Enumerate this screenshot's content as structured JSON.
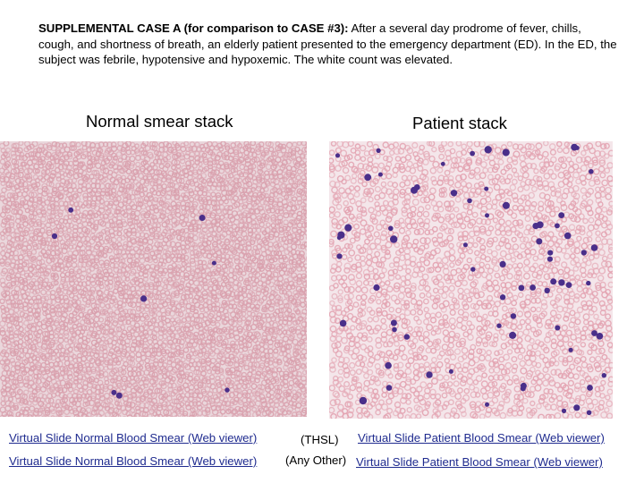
{
  "intro": {
    "bold_lead": "SUPPLEMENTAL CASE A (for comparison to CASE #3):",
    "body": " After a several day prodrome of fever, chills, cough, and shortness of breath, an elderly patient presented to the emergency department (ED). In the ED, the subject was febrile, hypotensive and hypoxemic. The white count was elevated."
  },
  "panels": {
    "normal_title": "Normal smear stack",
    "patient_title": "Patient stack"
  },
  "links": {
    "row1": {
      "left": "Virtual Slide Normal Blood Smear (Web viewer)",
      "middle": "(THSL)",
      "right": "Virtual Slide Patient Blood Smear (Web viewer)"
    },
    "row2": {
      "left": "Virtual Slide Normal Blood Smear (Web viewer)",
      "middle": "(Any Other)",
      "right": "Virtual Slide Patient Blood Smear (Web viewer)"
    }
  },
  "colors": {
    "link": "#1f2b8f",
    "rbc_normal": "#d9a0ad",
    "rbc_patient": "#e3a3b1",
    "wbc": "#4a2f8a"
  }
}
